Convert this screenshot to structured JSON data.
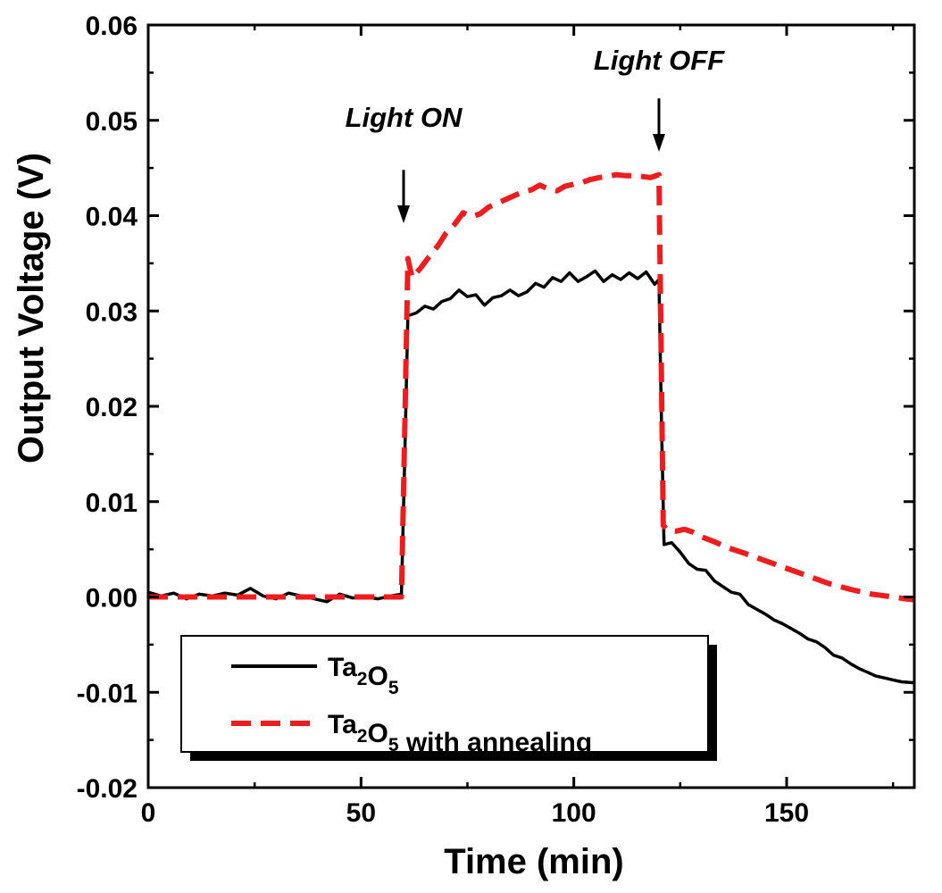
{
  "chart_data": {
    "type": "line",
    "title": "",
    "xlabel": "Time (min)",
    "ylabel": "Output Voltage (V)",
    "xlim": [
      0,
      180
    ],
    "ylim": [
      -0.02,
      0.06
    ],
    "xticks": [
      0,
      50,
      100,
      150
    ],
    "xtick_labels": [
      "0",
      "50",
      "100",
      "150"
    ],
    "yticks": [
      -0.02,
      -0.01,
      0.0,
      0.01,
      0.02,
      0.03,
      0.04,
      0.05,
      0.06
    ],
    "ytick_labels": [
      "-0.02",
      "-0.01",
      "0.00",
      "0.01",
      "0.02",
      "0.03",
      "0.04",
      "0.05",
      "0.06"
    ],
    "grid": false,
    "legend_position": "bottom-left",
    "series": [
      {
        "name": "Ta2O5",
        "legend_base": "Ta",
        "legend_sub1": "2",
        "legend_mid": "O",
        "legend_sub2": "5",
        "legend_suffix": "",
        "color": "#000000",
        "style": "solid",
        "x": [
          0,
          3,
          6,
          9,
          12,
          15,
          18,
          21,
          24,
          27,
          30,
          33,
          36,
          39,
          42,
          45,
          48,
          51,
          54,
          57,
          59.5,
          60.3,
          61,
          63,
          65,
          67,
          69,
          71,
          73,
          75,
          77,
          79,
          81,
          83,
          85,
          87,
          89,
          91,
          93,
          95,
          97,
          99,
          101,
          103,
          105,
          107,
          109,
          111,
          113,
          115,
          117,
          119,
          120,
          120.6,
          121.2,
          123,
          125,
          127,
          129,
          131,
          133,
          135,
          137,
          139,
          141,
          143,
          145,
          147,
          149,
          151,
          153,
          155,
          157,
          159,
          161,
          163,
          165,
          167,
          169,
          171,
          173,
          175,
          177,
          180
        ],
        "y": [
          0.0005,
          0.0001,
          0.0004,
          -0.0002,
          0.0003,
          0.0001,
          0.0004,
          0.0002,
          0.0009,
          0.0001,
          -0.0002,
          0.0004,
          0.0001,
          -0.0002,
          -0.0005,
          0.0003,
          -0.0001,
          0.0,
          -0.0002,
          0.0001,
          0.0003,
          0.015,
          0.0295,
          0.0298,
          0.0305,
          0.0302,
          0.031,
          0.0313,
          0.0322,
          0.0315,
          0.0317,
          0.0306,
          0.0314,
          0.0316,
          0.0322,
          0.0316,
          0.032,
          0.0329,
          0.0325,
          0.0335,
          0.0331,
          0.034,
          0.0331,
          0.0336,
          0.0342,
          0.0331,
          0.0338,
          0.0333,
          0.034,
          0.0334,
          0.0341,
          0.0328,
          0.0333,
          0.018,
          0.0055,
          0.0057,
          0.0047,
          0.0035,
          0.0029,
          0.0028,
          0.0017,
          0.0011,
          0.0005,
          0.0003,
          -0.0008,
          -0.0013,
          -0.0018,
          -0.0024,
          -0.0028,
          -0.0033,
          -0.0038,
          -0.0044,
          -0.0047,
          -0.0053,
          -0.0061,
          -0.0064,
          -0.007,
          -0.0075,
          -0.0079,
          -0.0083,
          -0.0085,
          -0.0087,
          -0.0089,
          -0.009
        ]
      },
      {
        "name": "Ta2O5 with annealing",
        "legend_base": "Ta",
        "legend_sub1": "2",
        "legend_mid": "O",
        "legend_sub2": "5",
        "legend_suffix": " with annealing",
        "color": "#ee1c1c",
        "style": "dashed",
        "x": [
          0,
          5,
          10,
          15,
          20,
          25,
          30,
          35,
          40,
          45,
          50,
          55,
          59.5,
          60.3,
          61,
          62,
          64,
          66,
          68,
          70,
          72,
          74,
          76,
          78,
          80,
          82,
          84,
          86,
          88,
          90,
          92,
          94,
          96,
          98,
          100,
          102,
          104,
          106,
          108,
          110,
          112,
          114,
          116,
          118,
          120,
          120.4,
          121,
          122,
          124,
          126,
          128,
          130,
          133,
          136,
          140,
          145,
          150,
          155,
          160,
          165,
          170,
          175,
          178,
          180
        ],
        "y": [
          0.0,
          0.0,
          0.0,
          0.0,
          0.0,
          0.0,
          0.0,
          0.0,
          0.0,
          0.0,
          0.0,
          0.0,
          0.0,
          0.018,
          0.0355,
          0.0335,
          0.0345,
          0.0357,
          0.0368,
          0.0382,
          0.0391,
          0.0403,
          0.0399,
          0.0402,
          0.0409,
          0.0413,
          0.0417,
          0.0421,
          0.0425,
          0.0427,
          0.0432,
          0.0428,
          0.0426,
          0.0431,
          0.0433,
          0.0435,
          0.0438,
          0.044,
          0.0441,
          0.0443,
          0.0442,
          0.0442,
          0.0441,
          0.044,
          0.0443,
          0.03,
          0.0075,
          0.007,
          0.0069,
          0.0071,
          0.0068,
          0.0063,
          0.0058,
          0.0052,
          0.0046,
          0.0038,
          0.003,
          0.0022,
          0.0014,
          0.0008,
          0.0003,
          0.0,
          -0.0002,
          -0.0003
        ]
      }
    ],
    "annotations": [
      {
        "text": "Light ON",
        "x": 60,
        "y_text": 0.0493,
        "arrow_from": 0.0448,
        "arrow_to": 0.0392
      },
      {
        "text": "Light OFF",
        "x": 120,
        "y_text": 0.0553,
        "arrow_from": 0.0523,
        "arrow_to": 0.0467
      }
    ]
  }
}
